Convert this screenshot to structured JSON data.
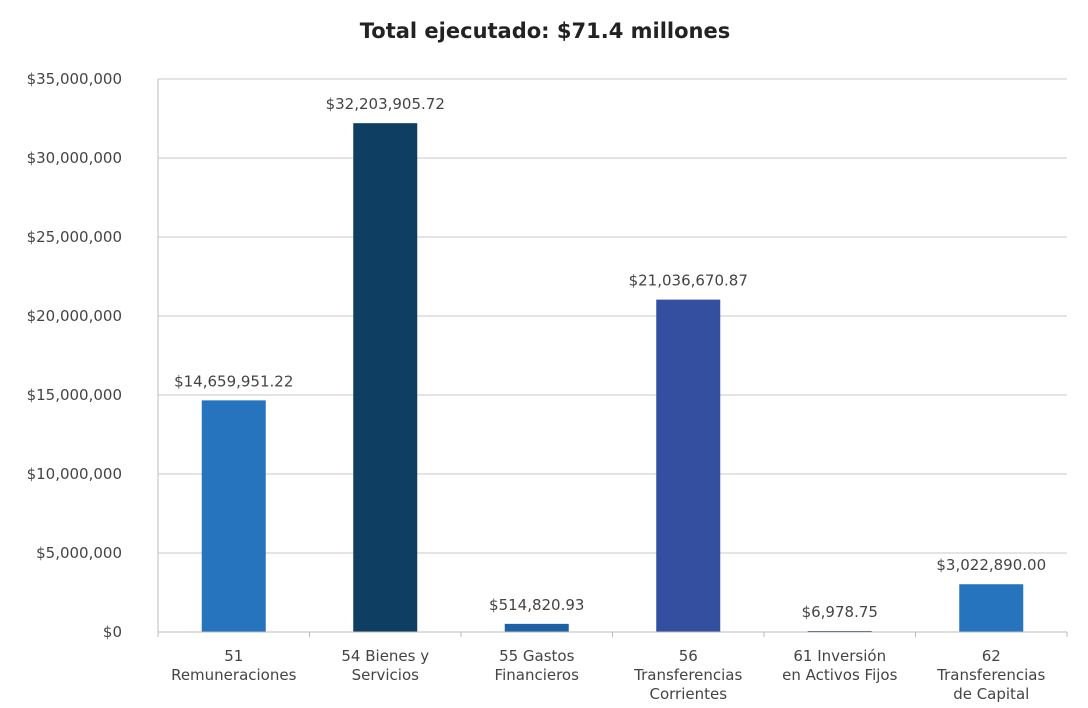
{
  "chart_data": {
    "type": "bar",
    "title": "Total ejecutado: $71.4 millones",
    "xlabel": "",
    "ylabel": "",
    "ylim": [
      0,
      35000000
    ],
    "yticks": [
      0,
      5000000,
      10000000,
      15000000,
      20000000,
      25000000,
      30000000,
      35000000
    ],
    "ytick_labels": [
      "$0",
      "$5,000,000",
      "$10,000,000",
      "$15,000,000",
      "$20,000,000",
      "$25,000,000",
      "$30,000,000",
      "$35,000,000"
    ],
    "grid": true,
    "legend": "none",
    "categories": [
      [
        "51",
        "Remuneraciones"
      ],
      [
        "54 Bienes y",
        "Servicios"
      ],
      [
        "55 Gastos",
        "Financieros"
      ],
      [
        "56",
        "Transferencias",
        "Corrientes"
      ],
      [
        "61 Inversión",
        "en Activos Fijos"
      ],
      [
        "62",
        "Transferencias",
        "de Capital"
      ]
    ],
    "values": [
      14659951.22,
      32203905.72,
      514820.93,
      21036670.87,
      6978.75,
      3022890.0
    ],
    "data_labels": [
      "$14,659,951.22",
      "$32,203,905.72",
      "$514,820.93",
      "$21,036,670.87",
      "$6,978.75",
      "$3,022,890.00"
    ],
    "colors": [
      "#2673be",
      "#0e3f63",
      "#1d62a6",
      "#344ea0",
      "#1c3566",
      "#2673be"
    ]
  }
}
